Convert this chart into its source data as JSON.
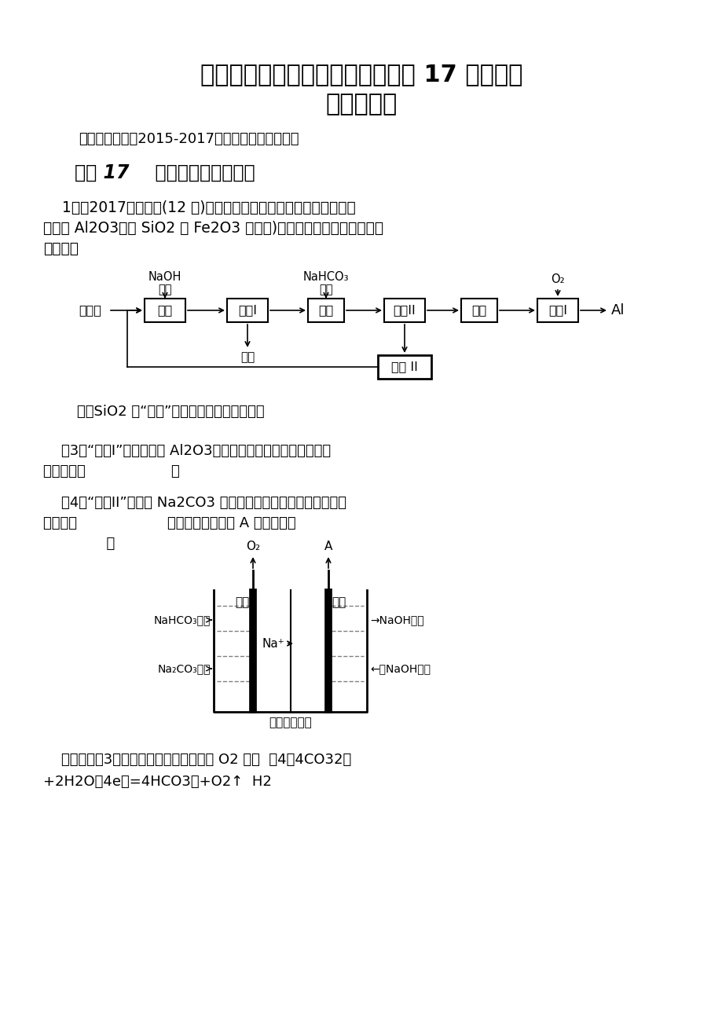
{
  "title_line1": "三年高考化学试题分项版解析专题 17 电化学原",
  "title_line2": "理综合应用",
  "subtitle": "「三年高考」（2015-2017）化学试题分项版解析",
  "section_title": "专题 17    电化学原理综合应用",
  "body1": "    1．　2017江苏卷、(12 分)铝是应用广泛的金属。以铝土矿（主要",
  "body2": "成分为 Al2O3，含 SiO2 和 Fe2O3 等杂质)为原料制备铝的一种工艺流",
  "body3": "程如下：",
  "note_text": "    注：SiO2 在“碱溶”时转化为铝硅酸钙沉淠。",
  "q3_line1": "    （3）“电解I”是电解燕融 Al2O3，电解过程中作阳极的石墨易消",
  "q3_line2": "耗，原因是                   。",
  "q4_line1": "    （4）“电解II”是电解 Na2CO3 溶液，原理如图所示。阳极的电极",
  "q4_line2": "反应式为                    ，阴极产生的物质 A 的化学式为",
  "q4_blank": "              。",
  "ans_line1": "    「答案」（3）石墨电极被阳极上产生的 O2 氧化  （4）4CO32－",
  "ans_line2": "+2H2O－4e－=4HCO3－+O2↑  H2",
  "bg_color": "#ffffff",
  "text_color": "#000000"
}
